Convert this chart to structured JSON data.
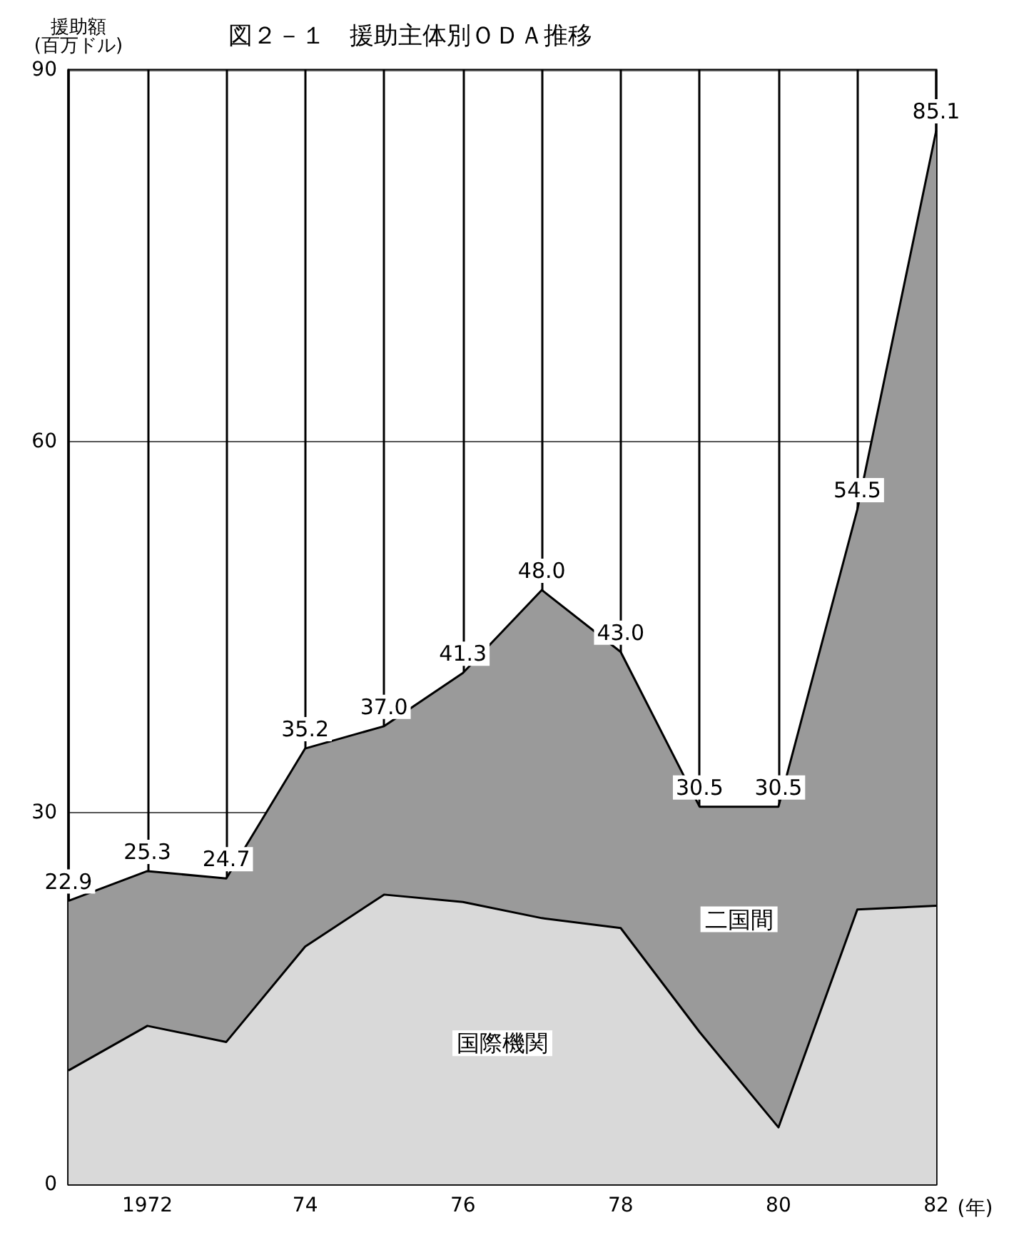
{
  "chart_data": {
    "type": "area",
    "title": "図２－１　援助主体別ＯＤＡ推移",
    "ylabel": "援助額\n(百万ドル)",
    "xlabel": "(年)",
    "x": [
      1971,
      1972,
      1973,
      1974,
      1975,
      1976,
      1977,
      1978,
      1979,
      1980,
      1981,
      1982
    ],
    "stacked": true,
    "series": [
      {
        "name": "国際機関",
        "color": "#d9d9d9",
        "values": [
          9.2,
          12.8,
          11.5,
          19.2,
          23.4,
          22.8,
          21.5,
          20.7,
          12.3,
          4.6,
          22.2,
          22.5
        ]
      },
      {
        "name": "二国間",
        "color": "#9a9a9a",
        "values": [
          13.7,
          12.5,
          13.2,
          16.0,
          13.6,
          18.5,
          26.5,
          22.3,
          18.2,
          25.9,
          32.3,
          62.6
        ]
      }
    ],
    "totals": [
      "22.9",
      "25.3",
      "24.7",
      "35.2",
      "37.0",
      "41.3",
      "48.0",
      "43.0",
      "30.5",
      "30.5",
      "54.5",
      "85.1"
    ],
    "xlim": [
      1971,
      1982
    ],
    "xticks": [
      {
        "value": 1971,
        "label": null
      },
      1972,
      {
        "value": 1973,
        "label": null
      },
      {
        "value": 1974,
        "label": "74"
      },
      {
        "value": 1975,
        "label": null
      },
      {
        "value": 1976,
        "label": "76"
      },
      {
        "value": 1977,
        "label": null
      },
      {
        "value": 1978,
        "label": "78"
      },
      {
        "value": 1979,
        "label": null
      },
      {
        "value": 1980,
        "label": "80"
      },
      {
        "value": 1981,
        "label": null
      },
      {
        "value": 1982,
        "label": "82"
      }
    ],
    "ylim": [
      0,
      90
    ],
    "yticks": [
      0,
      30,
      60,
      90
    ],
    "grid": true,
    "marker": "none",
    "line_style": "solid",
    "legend": false
  }
}
